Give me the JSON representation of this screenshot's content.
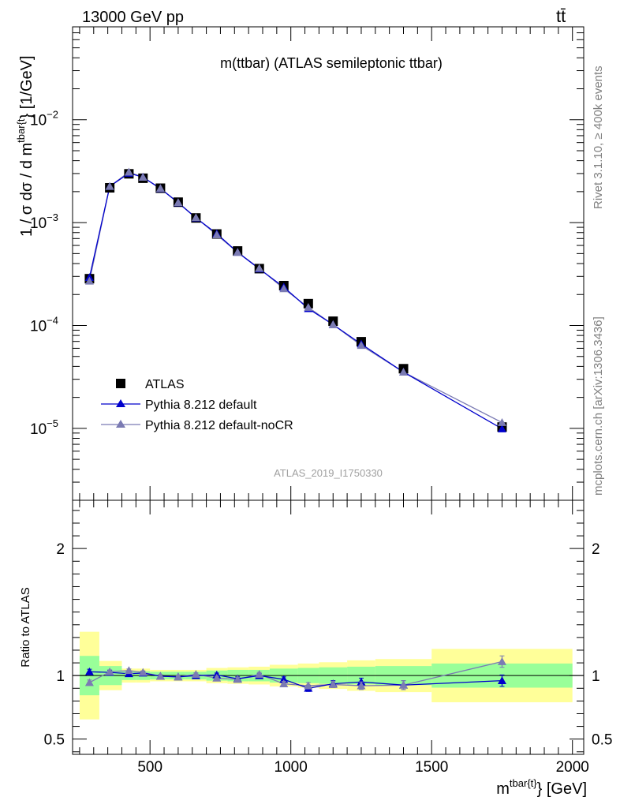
{
  "header": {
    "left_text": "13000 GeV pp",
    "right_text": "tt̄"
  },
  "side_labels": {
    "rivet": "Rivet 3.1.10, ≥ 400k events",
    "mcplots": "mcplots.cern.ch [arXiv:1306.3436]"
  },
  "chart_data": [
    {
      "type": "scatter",
      "title": "m(ttbar) (ATLAS semileptonic ttbar)",
      "watermark": "ATLAS_2019_I1750330",
      "xlabel": "m^{tbar{t}} [GeV]",
      "xlabel_main": "m",
      "xlabel_sup": "tbar{t}",
      "xlabel_unit": "} [GeV]",
      "ylabel": "1 / σ dσ / d m^{tbar{t}} [1/GeV]",
      "ylabel_main": "1 / σ dσ / d m",
      "ylabel_sup": "tbar{t",
      "ylabel_unit": "} [1/GeV]",
      "xlim": [
        225,
        2040
      ],
      "ylim": [
        2e-06,
        0.08
      ],
      "yscale": "log",
      "x_ticks": [
        500,
        1000,
        1500,
        2000
      ],
      "x_tick_labels": [
        "500",
        "1000",
        "1500",
        "2000"
      ],
      "y_ticks": [
        1e-05,
        0.0001,
        0.001,
        0.01
      ],
      "y_tick_labels": [
        {
          "base": "10",
          "exp": "−5"
        },
        {
          "base": "10",
          "exp": "−4"
        },
        {
          "base": "10",
          "exp": "−3"
        },
        {
          "base": "10",
          "exp": "−2"
        }
      ],
      "legend_position": "bottom-left",
      "x": [
        285,
        357,
        425,
        475,
        537,
        600,
        663,
        737,
        811,
        888,
        975,
        1062,
        1150,
        1250,
        1400,
        1750
      ],
      "series": [
        {
          "name": "ATLAS",
          "marker": "square",
          "color": "#000000",
          "values": [
            0.000285,
            0.00218,
            0.00298,
            0.0027,
            0.00216,
            0.00158,
            0.00111,
            0.000775,
            0.00053,
            0.000357,
            0.000244,
            0.000163,
            0.00011,
            6.95e-05,
            3.8e-05,
            1.03e-05
          ]
        },
        {
          "name": "Pythia 8.212 default",
          "marker": "triangle",
          "color": "#0000cc",
          "values": [
            0.000293,
            0.00225,
            0.00302,
            0.00277,
            0.00214,
            0.00156,
            0.00111,
            0.00078,
            0.000515,
            0.000355,
            0.000236,
            0.000146,
            0.000102,
            6.6e-05,
            3.52e-05,
            9.9e-06
          ]
        },
        {
          "name": "Pythia 8.212 default-noCR",
          "marker": "triangle",
          "color": "#7b7bb3",
          "values": [
            0.00027,
            0.00225,
            0.0031,
            0.00276,
            0.00215,
            0.00157,
            0.00112,
            0.00076,
            0.000515,
            0.00036,
            0.000228,
            0.00015,
            0.000102,
            6.4e-05,
            3.52e-05,
            1.14e-05
          ]
        }
      ]
    },
    {
      "type": "scatter",
      "ylabel": "Ratio to ATLAS",
      "xlim": [
        225,
        2040
      ],
      "ylim": [
        0.38,
        2.38
      ],
      "y_ticks": [
        0.5,
        1,
        2
      ],
      "y_tick_labels": [
        "0.5",
        "1",
        "2"
      ],
      "x_ticks": [
        500,
        1000,
        1500,
        2000
      ],
      "reference_line": 1,
      "bands": [
        {
          "x_lo": 250,
          "x_hi": 320,
          "green": [
            0.845,
            1.155
          ],
          "yellow": [
            0.655,
            1.345
          ]
        },
        {
          "x_lo": 320,
          "x_hi": 400,
          "green": [
            0.925,
            1.075
          ],
          "yellow": [
            0.885,
            1.115
          ]
        },
        {
          "x_lo": 400,
          "x_hi": 450,
          "green": [
            0.965,
            1.035
          ],
          "yellow": [
            0.945,
            1.055
          ]
        },
        {
          "x_lo": 450,
          "x_hi": 500,
          "green": [
            0.965,
            1.035
          ],
          "yellow": [
            0.945,
            1.055
          ]
        },
        {
          "x_lo": 500,
          "x_hi": 575,
          "green": [
            0.97,
            1.03
          ],
          "yellow": [
            0.955,
            1.045
          ]
        },
        {
          "x_lo": 575,
          "x_hi": 625,
          "green": [
            0.97,
            1.03
          ],
          "yellow": [
            0.955,
            1.045
          ]
        },
        {
          "x_lo": 625,
          "x_hi": 700,
          "green": [
            0.97,
            1.03
          ],
          "yellow": [
            0.955,
            1.045
          ]
        },
        {
          "x_lo": 700,
          "x_hi": 775,
          "green": [
            0.96,
            1.04
          ],
          "yellow": [
            0.94,
            1.06
          ]
        },
        {
          "x_lo": 775,
          "x_hi": 850,
          "green": [
            0.955,
            1.045
          ],
          "yellow": [
            0.935,
            1.065
          ]
        },
        {
          "x_lo": 850,
          "x_hi": 925,
          "green": [
            0.955,
            1.045
          ],
          "yellow": [
            0.93,
            1.07
          ]
        },
        {
          "x_lo": 925,
          "x_hi": 1025,
          "green": [
            0.945,
            1.055
          ],
          "yellow": [
            0.915,
            1.085
          ]
        },
        {
          "x_lo": 1025,
          "x_hi": 1100,
          "green": [
            0.94,
            1.06
          ],
          "yellow": [
            0.905,
            1.095
          ]
        },
        {
          "x_lo": 1100,
          "x_hi": 1200,
          "green": [
            0.935,
            1.065
          ],
          "yellow": [
            0.895,
            1.105
          ]
        },
        {
          "x_lo": 1200,
          "x_hi": 1300,
          "green": [
            0.93,
            1.07
          ],
          "yellow": [
            0.88,
            1.12
          ]
        },
        {
          "x_lo": 1300,
          "x_hi": 1500,
          "green": [
            0.925,
            1.075
          ],
          "yellow": [
            0.87,
            1.13
          ]
        },
        {
          "x_lo": 1500,
          "x_hi": 2000,
          "green": [
            0.905,
            1.095
          ],
          "yellow": [
            0.79,
            1.21
          ]
        }
      ],
      "x": [
        285,
        357,
        425,
        475,
        537,
        600,
        663,
        737,
        811,
        888,
        975,
        1062,
        1150,
        1250,
        1400,
        1750
      ],
      "series": [
        {
          "name": "Pythia 8.212 default",
          "color": "#0000cc",
          "values": [
            1.03,
            1.025,
            1.015,
            1.02,
            0.995,
            0.99,
            1.0,
            1.005,
            0.975,
            1.0,
            0.97,
            0.9,
            0.935,
            0.95,
            0.925,
            0.96
          ],
          "errors": [
            0.02,
            0.015,
            0.012,
            0.012,
            0.012,
            0.012,
            0.012,
            0.015,
            0.015,
            0.015,
            0.02,
            0.025,
            0.025,
            0.03,
            0.035,
            0.045
          ]
        },
        {
          "name": "Pythia 8.212 default-noCR",
          "color": "#7b7bb3",
          "values": [
            0.945,
            1.03,
            1.04,
            1.025,
            0.995,
            0.99,
            1.01,
            0.98,
            0.97,
            1.01,
            0.935,
            0.92,
            0.93,
            0.92,
            0.925,
            1.11
          ],
          "errors": [
            0.02,
            0.015,
            0.012,
            0.012,
            0.012,
            0.012,
            0.012,
            0.015,
            0.015,
            0.015,
            0.02,
            0.025,
            0.025,
            0.03,
            0.035,
            0.045
          ]
        }
      ]
    }
  ]
}
